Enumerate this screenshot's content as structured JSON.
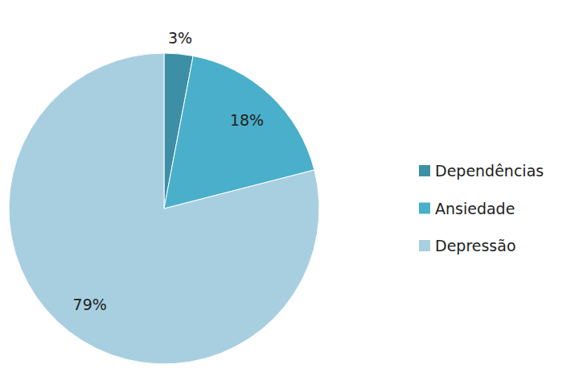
{
  "chart_data": {
    "type": "pie",
    "categories": [
      "Dependências",
      "Ansiedade",
      "Depressão"
    ],
    "values": [
      3,
      18,
      79
    ],
    "value_labels": [
      "3%",
      "18%",
      "79%"
    ],
    "colors": [
      "#3d8fa6",
      "#4aafca",
      "#a8cfe0"
    ],
    "data_labels": true,
    "legend": "right"
  }
}
